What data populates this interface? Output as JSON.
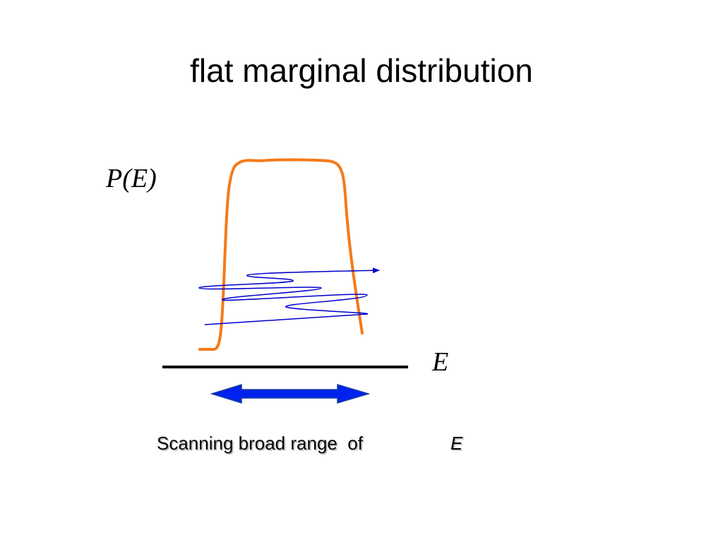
{
  "title": "flat marginal distribution",
  "diagram": {
    "y_label": "P(E)",
    "x_label": "E"
  },
  "caption": {
    "text": "Scanning broad range  of",
    "variable": "E"
  }
}
